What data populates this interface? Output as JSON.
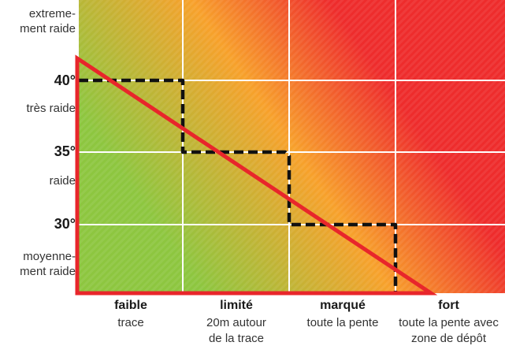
{
  "y_labels": {
    "extreme": "extreme-\nment raide",
    "deg40": "40°",
    "tres_raide": "très raide",
    "deg35": "35°",
    "raide": "raide",
    "deg30": "30°",
    "moyenne": "moyenne-\nment raide"
  },
  "x_columns": [
    {
      "level": "faible",
      "desc": "trace"
    },
    {
      "level": "limité",
      "desc": "20m autour\nde la trace"
    },
    {
      "level": "marqué",
      "desc": "toute la pente"
    },
    {
      "level": "fort",
      "desc": "toute la pente avec\nzone de dépôt"
    }
  ],
  "colors": {
    "low": "#8dc63f",
    "mid": "#f7a12b",
    "high": "#ee2c2c",
    "triangle": "#e8262b",
    "grid": "#ffffff",
    "step_line": "#111111"
  }
}
